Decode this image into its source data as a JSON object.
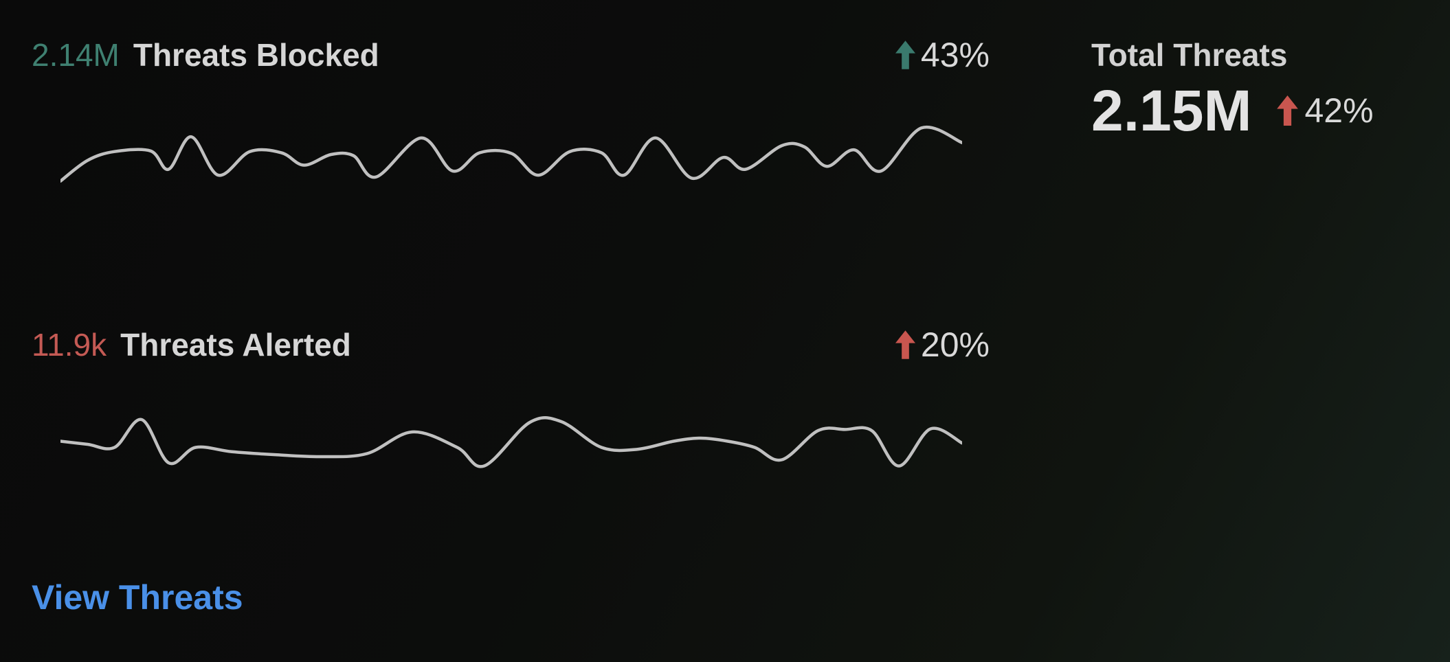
{
  "page": {
    "background_from": "#0a0a0a",
    "background_to": "#17211b",
    "text_color": "#d6d6d6"
  },
  "metrics": {
    "blocked": {
      "value": "2.14M",
      "value_color": "#3f8071",
      "label": "Threats Blocked",
      "trend_direction": "up",
      "trend_percent": "43%",
      "arrow_color": "#3a7a6d"
    },
    "alerted": {
      "value": "11.9k",
      "value_color": "#c45a54",
      "label": "Threats Alerted",
      "trend_direction": "up",
      "trend_percent": "20%",
      "arrow_color": "#c9564f"
    }
  },
  "total": {
    "label": "Total Threats",
    "value": "2.15M",
    "trend_direction": "up",
    "trend_percent": "42%",
    "arrow_color": "#c9564f"
  },
  "link": {
    "label": "View Threats",
    "color": "#4a90e8"
  },
  "chart_data": [
    {
      "type": "line",
      "name": "threats-blocked-sparkline",
      "title": "Threats Blocked trend",
      "line_color": "#c0c0c0",
      "axes_hidden": true,
      "x_units": "relative-position-0-100",
      "y_units": "relative-value-0-100",
      "x": [
        0,
        3,
        6,
        10,
        12,
        14.5,
        17.5,
        21,
        24.5,
        27,
        30,
        32.5,
        35,
        40,
        43.5,
        46.5,
        50,
        53,
        56.5,
        60,
        62.5,
        66,
        70,
        73.5,
        76,
        80,
        82.5,
        85,
        88,
        91,
        95.5,
        100
      ],
      "y": [
        5,
        40,
        55,
        56,
        25,
        80,
        15,
        55,
        53,
        32,
        50,
        48,
        12,
        78,
        22,
        53,
        52,
        15,
        55,
        53,
        15,
        78,
        10,
        45,
        25,
        65,
        63,
        30,
        58,
        22,
        95,
        70
      ]
    },
    {
      "type": "line",
      "name": "threats-alerted-sparkline",
      "title": "Threats Alerted trend",
      "line_color": "#c0c0c0",
      "axes_hidden": true,
      "x_units": "relative-position-0-100",
      "y_units": "relative-value-0-100",
      "x": [
        0,
        3,
        6,
        9,
        12,
        15,
        19,
        24,
        29,
        34,
        39,
        44,
        47,
        52,
        55.5,
        60,
        64,
        68,
        71,
        74,
        77,
        80,
        84,
        87,
        90,
        93,
        96.5,
        100
      ],
      "y": [
        55,
        50,
        45,
        90,
        20,
        45,
        38,
        33,
        30,
        35,
        70,
        45,
        15,
        85,
        87,
        45,
        42,
        55,
        60,
        55,
        45,
        25,
        72,
        74,
        72,
        15,
        75,
        52
      ]
    }
  ]
}
